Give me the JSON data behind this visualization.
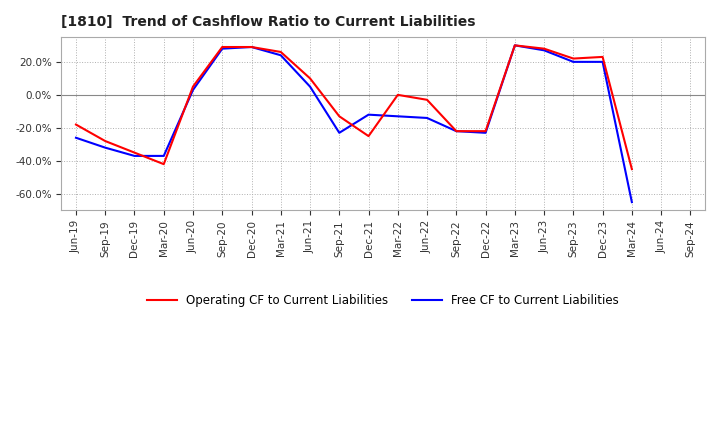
{
  "title": "[1810]  Trend of Cashflow Ratio to Current Liabilities",
  "x_labels": [
    "Jun-19",
    "Sep-19",
    "Dec-19",
    "Mar-20",
    "Jun-20",
    "Sep-20",
    "Dec-20",
    "Mar-21",
    "Jun-21",
    "Sep-21",
    "Dec-21",
    "Mar-22",
    "Jun-22",
    "Sep-22",
    "Dec-22",
    "Mar-23",
    "Jun-23",
    "Sep-23",
    "Dec-23",
    "Mar-24",
    "Jun-24",
    "Sep-24"
  ],
  "operating_cf": [
    -18,
    -28,
    -35,
    -42,
    5,
    29,
    29,
    26,
    10,
    -13,
    -25,
    0,
    -3,
    -22,
    -22,
    30,
    28,
    22,
    23,
    -45,
    null,
    null
  ],
  "free_cf": [
    -26,
    -32,
    -37,
    -37,
    3,
    28,
    29,
    24,
    5,
    -23,
    -12,
    -13,
    -14,
    -22,
    -23,
    30,
    27,
    20,
    20,
    -65,
    null,
    null
  ],
  "operating_color": "#ff0000",
  "free_color": "#0000ff",
  "ylim": [
    -70,
    35
  ],
  "yticks": [
    -60,
    -40,
    -20,
    0,
    20
  ],
  "background_color": "#ffffff",
  "grid_color": "#b0b0b0",
  "legend_labels": [
    "Operating CF to Current Liabilities",
    "Free CF to Current Liabilities"
  ]
}
